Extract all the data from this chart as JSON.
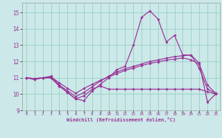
{
  "xlabel": "Windchill (Refroidissement éolien,°C)",
  "background_color": "#cce8e8",
  "grid_color": "#88ccbb",
  "line_color": "#993399",
  "xlim": [
    -0.5,
    23.5
  ],
  "ylim": [
    9.0,
    15.6
  ],
  "yticks": [
    9,
    10,
    11,
    12,
    13,
    14,
    15
  ],
  "xticks": [
    0,
    1,
    2,
    3,
    4,
    5,
    6,
    7,
    8,
    9,
    10,
    11,
    12,
    13,
    14,
    15,
    16,
    17,
    18,
    19,
    20,
    21,
    22,
    23
  ],
  "line1_x": [
    0,
    1,
    2,
    3,
    4,
    5,
    6,
    7,
    8,
    9,
    10,
    11,
    12,
    13,
    14,
    15,
    16,
    17,
    18,
    19,
    20,
    21,
    22,
    23
  ],
  "line1_y": [
    11.0,
    10.9,
    11.0,
    11.0,
    10.5,
    10.1,
    9.7,
    9.6,
    10.2,
    10.6,
    11.0,
    11.5,
    11.7,
    13.0,
    14.7,
    15.1,
    14.6,
    13.2,
    13.6,
    12.4,
    12.4,
    11.9,
    9.5,
    10.0
  ],
  "line2_x": [
    0,
    1,
    2,
    3,
    4,
    5,
    6,
    7,
    8,
    9,
    10,
    11,
    12,
    13,
    14,
    15,
    16,
    17,
    18,
    19,
    20,
    21,
    22,
    23
  ],
  "line2_y": [
    11.0,
    10.95,
    11.0,
    11.1,
    10.55,
    10.2,
    9.85,
    10.1,
    10.45,
    10.8,
    11.1,
    11.35,
    11.55,
    11.7,
    11.85,
    12.0,
    12.1,
    12.2,
    12.3,
    12.35,
    12.4,
    11.6,
    10.3,
    10.05
  ],
  "line3_x": [
    0,
    1,
    2,
    3,
    4,
    5,
    6,
    7,
    8,
    9,
    10,
    11,
    12,
    13,
    14,
    15,
    16,
    17,
    18,
    19,
    20,
    21,
    22,
    23
  ],
  "line3_y": [
    11.0,
    10.95,
    11.0,
    11.05,
    10.7,
    10.35,
    10.05,
    10.35,
    10.6,
    10.85,
    11.05,
    11.25,
    11.45,
    11.6,
    11.75,
    11.88,
    11.98,
    12.08,
    12.15,
    12.22,
    12.1,
    11.85,
    10.55,
    10.05
  ],
  "line4_x": [
    0,
    1,
    2,
    3,
    4,
    5,
    6,
    7,
    8,
    9,
    10,
    11,
    12,
    13,
    14,
    15,
    16,
    17,
    18,
    19,
    20,
    21,
    22,
    23
  ],
  "line4_y": [
    11.0,
    10.9,
    11.0,
    11.0,
    10.5,
    10.1,
    9.7,
    9.9,
    10.3,
    10.5,
    10.3,
    10.3,
    10.3,
    10.3,
    10.3,
    10.3,
    10.3,
    10.3,
    10.3,
    10.3,
    10.3,
    10.3,
    10.15,
    10.0
  ]
}
